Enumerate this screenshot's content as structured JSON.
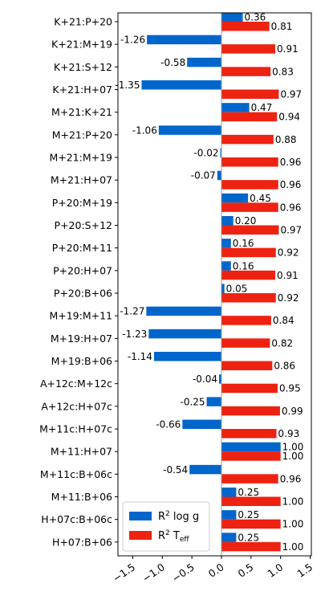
{
  "chart_data": {
    "type": "bar",
    "orientation": "horizontal",
    "categories": [
      "K+21:P+20",
      "K+21:M+19",
      "K+21:S+12",
      "K+21:H+07",
      "M+21:K+21",
      "M+21:P+20",
      "M+21:M+19",
      "M+21:H+07",
      "P+20:M+19",
      "P+20:S+12",
      "P+20:M+11",
      "P+20:H+07",
      "P+20:B+06",
      "M+19:M+11",
      "M+19:H+07",
      "M+19:B+06",
      "A+12c:M+12c",
      "A+12c:H+07c",
      "M+11c:H+07c",
      "M+11:H+07",
      "M+11c:B+06c",
      "M+11:B+06",
      "H+07c:B+06c",
      "H+07:B+06"
    ],
    "series": [
      {
        "name": "R² log g",
        "color": "#0066cc",
        "values": [
          0.36,
          -1.26,
          -0.58,
          -1.35,
          0.47,
          -1.06,
          -0.02,
          -0.07,
          0.45,
          0.2,
          0.16,
          0.16,
          0.05,
          -1.27,
          -1.23,
          -1.14,
          -0.04,
          -0.25,
          -0.66,
          1.0,
          -0.54,
          0.25,
          0.25,
          0.25
        ],
        "labels": [
          "0.36",
          "-1.26",
          "-0.58",
          "-1.35",
          "0.47",
          "-1.06",
          "-0.02",
          "-0.07",
          "0.45",
          "0.20",
          "0.16",
          "0.16",
          "0.05",
          "-1.27",
          "-1.23",
          "-1.14",
          "-0.04",
          "-0.25",
          "-0.66",
          "1.00",
          "-0.54",
          "0.25",
          "0.25",
          "0.25"
        ]
      },
      {
        "name": "R² T_eff",
        "color": "#ee2211",
        "values": [
          0.81,
          0.91,
          0.83,
          0.97,
          0.94,
          0.88,
          0.96,
          0.96,
          0.96,
          0.97,
          0.92,
          0.91,
          0.92,
          0.84,
          0.82,
          0.86,
          0.95,
          0.99,
          0.93,
          1.0,
          0.96,
          1.0,
          1.0,
          1.0
        ],
        "labels": [
          "0.81",
          "0.91",
          "0.83",
          "0.97",
          "0.94",
          "0.88",
          "0.96",
          "0.96",
          "0.96",
          "0.97",
          "0.92",
          "0.91",
          "0.92",
          "0.84",
          "0.82",
          "0.86",
          "0.95",
          "0.99",
          "0.93",
          "1.00",
          "0.96",
          "1.00",
          "1.00",
          "1.00"
        ]
      }
    ],
    "xlim": [
      -1.75,
      1.52
    ],
    "xticks": [
      -1.5,
      -1.0,
      -0.5,
      0.0,
      0.5,
      1.0,
      1.5
    ],
    "xtick_labels": [
      "−1.5",
      "−1.0",
      "−0.5",
      "0.0",
      "0.5",
      "1.0",
      "1.5"
    ],
    "xlabel": "",
    "ylabel": "",
    "title": "",
    "grid": false,
    "legend": {
      "position": "lower-left",
      "entries": [
        {
          "prefix": "R",
          "sup": "2",
          "text": " log g",
          "sub": ""
        },
        {
          "prefix": "R",
          "sup": "2",
          "text": " T",
          "sub": "eff"
        }
      ]
    }
  }
}
